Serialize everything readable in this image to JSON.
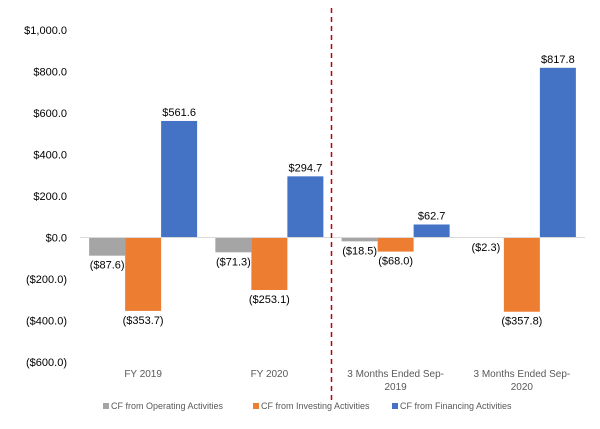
{
  "chart_data": {
    "type": "bar",
    "categories": [
      [
        "FY 2019"
      ],
      [
        "FY 2020"
      ],
      [
        "3 Months Ended Sep-",
        "2019"
      ],
      [
        "3 Months Ended Sep-",
        "2020"
      ]
    ],
    "series": [
      {
        "name": "CF from Operating Activities",
        "color": "#a5a5a5",
        "values": [
          -87.6,
          -71.3,
          -18.5,
          -2.3
        ],
        "labels": [
          "($87.6)",
          "($71.3)",
          "($18.5)",
          "($2.3)"
        ]
      },
      {
        "name": "CF from Investing Activities",
        "color": "#ed7d31",
        "values": [
          -353.7,
          -253.1,
          -68.0,
          -357.8
        ],
        "labels": [
          "($353.7)",
          "($253.1)",
          "($68.0)",
          "($357.8)"
        ]
      },
      {
        "name": "CF from Financing Activities",
        "color": "#4472c4",
        "values": [
          561.6,
          294.7,
          62.7,
          817.8
        ],
        "labels": [
          "$561.6",
          "$294.7",
          "$62.7",
          "$817.8"
        ]
      }
    ],
    "ylim": [
      -600,
      1000
    ],
    "yticks": [
      1000,
      800,
      600,
      400,
      200,
      0,
      -200,
      -400,
      -600
    ],
    "ytick_labels": [
      "$1,000.0",
      "$800.0",
      "$600.0",
      "$400.0",
      "$200.0",
      "$0.0",
      "($200.0)",
      "($400.0)",
      "($600.0)"
    ],
    "grid": false,
    "legend_position": "bottom",
    "divider": {
      "style": "dashed",
      "color": "#c00000",
      "between_categories": [
        1,
        2
      ]
    }
  }
}
